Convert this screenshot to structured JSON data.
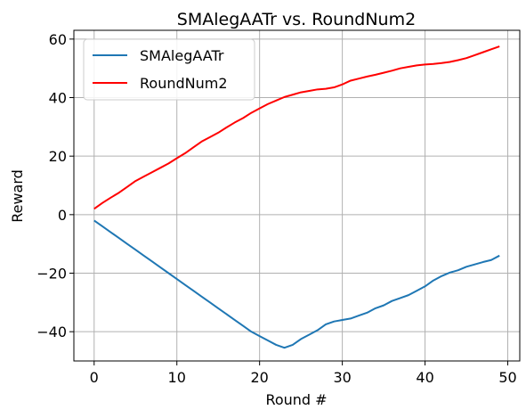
{
  "chart_data": {
    "type": "line",
    "title": "SMAlegAATr vs. RoundNum2",
    "xlabel": "Round #",
    "ylabel": "Reward",
    "xlim": [
      -2.45,
      51.45
    ],
    "ylim": [
      -50,
      63
    ],
    "xticks": [
      0,
      10,
      20,
      30,
      40,
      50
    ],
    "yticks": [
      -40,
      -20,
      0,
      20,
      40,
      60
    ],
    "xtick_labels": [
      "0",
      "10",
      "20",
      "30",
      "40",
      "50"
    ],
    "ytick_labels": [
      "−40",
      "−20",
      "0",
      "20",
      "40",
      "60"
    ],
    "grid": true,
    "legend_position": "upper-left",
    "x": [
      0,
      1,
      2,
      3,
      4,
      5,
      6,
      7,
      8,
      9,
      10,
      11,
      12,
      13,
      14,
      15,
      16,
      17,
      18,
      19,
      20,
      21,
      22,
      23,
      24,
      25,
      26,
      27,
      28,
      29,
      30,
      31,
      32,
      33,
      34,
      35,
      36,
      37,
      38,
      39,
      40,
      41,
      42,
      43,
      44,
      45,
      46,
      47,
      48,
      49
    ],
    "series": [
      {
        "name": "SMAlegAATr",
        "color": "#1f77b4",
        "values": [
          -2.0,
          -4.0,
          -6.0,
          -8.0,
          -10.0,
          -12.0,
          -14.0,
          -16.0,
          -18.0,
          -20.0,
          -22.0,
          -24.0,
          -26.0,
          -28.0,
          -30.0,
          -32.0,
          -34.0,
          -36.0,
          -38.0,
          -40.0,
          -41.5,
          -43.0,
          -44.5,
          -45.5,
          -44.5,
          -42.5,
          -41.0,
          -39.5,
          -37.5,
          -36.5,
          -36.0,
          -35.5,
          -34.5,
          -33.5,
          -32.0,
          -31.0,
          -29.5,
          -28.5,
          -27.5,
          -26.0,
          -24.5,
          -22.5,
          -21.0,
          -19.8,
          -19.0,
          -17.8,
          -17.0,
          -16.2,
          -15.5,
          -14.0
        ]
      },
      {
        "name": "RoundNum2",
        "color": "#ff0000",
        "values": [
          2.0,
          4.0,
          5.8,
          7.5,
          9.5,
          11.5,
          13.0,
          14.5,
          16.0,
          17.5,
          19.3,
          21.0,
          23.0,
          25.0,
          26.5,
          28.0,
          29.8,
          31.5,
          33.0,
          34.8,
          36.3,
          37.8,
          39.0,
          40.2,
          41.0,
          41.8,
          42.3,
          42.8,
          43.0,
          43.5,
          44.5,
          45.8,
          46.5,
          47.2,
          47.8,
          48.5,
          49.2,
          50.0,
          50.5,
          51.0,
          51.3,
          51.5,
          51.8,
          52.2,
          52.8,
          53.5,
          54.5,
          55.5,
          56.5,
          57.5
        ]
      }
    ]
  }
}
